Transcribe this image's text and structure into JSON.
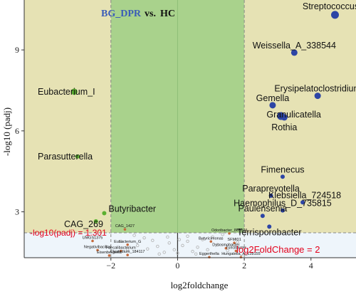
{
  "chart_data": {
    "type": "scatter",
    "title_group": "BG_DPR",
    "title_vs": "vs.",
    "title_ref": "HC",
    "xlabel": "log2foldchange",
    "ylabel": "-log10 (padj)",
    "xlim": [
      -4.6,
      5.35
    ],
    "ylim": [
      1.3,
      10.85
    ],
    "xticks": [
      -2,
      0,
      2,
      4
    ],
    "yticks": [
      3,
      6,
      9
    ],
    "fold_change_threshold": 2,
    "padj_threshold_label": "-log10(padj) = 1.301",
    "fc_threshold_label": "log2FoldChange = 2",
    "colors": {
      "up": "#2d45a5",
      "down": "#5cb031",
      "ns": "#b0b0b0",
      "yellow_region": "#e6e2b4",
      "green_region": "#a9d28c",
      "threshold_line": "#e3001b",
      "lower_region": "#eef5fb"
    },
    "points": [
      {
        "label": "Streptococcus",
        "x": 4.72,
        "y": 10.3,
        "group": "up",
        "size": "l",
        "font": "l"
      },
      {
        "label": "Weissella_A_338544",
        "x": 3.5,
        "y": 8.9,
        "group": "up",
        "size": "m",
        "font": "l"
      },
      {
        "label": "Erysipelatoclostridium",
        "x": 4.2,
        "y": 7.3,
        "group": "up",
        "size": "m",
        "font": "l"
      },
      {
        "label": "Gemella",
        "x": 2.85,
        "y": 6.95,
        "group": "up",
        "size": "m",
        "font": "l"
      },
      {
        "label": "Granulicatella",
        "x": 3.1,
        "y": 6.55,
        "group": "up",
        "size": "l",
        "font": "l"
      },
      {
        "label": "Rothia",
        "x": 3.2,
        "y": 6.5,
        "group": "up",
        "size": "m",
        "font": "l"
      },
      {
        "label": "Fimenecus",
        "x": 3.15,
        "y": 4.3,
        "group": "up",
        "size": "s",
        "font": "l"
      },
      {
        "label": "Paraprevotella",
        "x": 2.8,
        "y": 3.6,
        "group": "up",
        "size": "s",
        "font": "l"
      },
      {
        "label": "Klebsiella_724518",
        "x": 3.75,
        "y": 3.35,
        "group": "up",
        "size": "s",
        "font": "l"
      },
      {
        "label": "Haemophilus_D_735815",
        "x": 3.15,
        "y": 3.05,
        "group": "up",
        "size": "s",
        "font": "l"
      },
      {
        "label": "Paulensenia",
        "x": 2.55,
        "y": 2.85,
        "group": "up",
        "size": "s",
        "font": "l"
      },
      {
        "label": "Terrisporobacter",
        "x": 2.75,
        "y": 2.45,
        "group": "up",
        "size": "s",
        "font": "l"
      },
      {
        "label": "Eubacterium_I",
        "x": -3.1,
        "y": 7.45,
        "group": "down",
        "size": "m",
        "font": "l"
      },
      {
        "label": "Parasutterella",
        "x": -3.0,
        "y": 5.05,
        "group": "down",
        "size": "s",
        "font": "l"
      },
      {
        "label": "Butyribacter",
        "x": -2.2,
        "y": 2.95,
        "group": "down",
        "size": "s",
        "font": "l"
      },
      {
        "label": "CAG_269",
        "x": -2.45,
        "y": 2.65,
        "group": "down",
        "size": "s",
        "font": "l"
      },
      {
        "label": "CAG_1427",
        "x": -1.58,
        "y": 2.35,
        "group": "ns",
        "size": "xs",
        "font": "xs"
      },
      {
        "label": "UMGS1375",
        "x": -2.55,
        "y": 1.92,
        "group": "ns",
        "size": "xs",
        "font": "xs"
      },
      {
        "label": "Eubacterium_G",
        "x": -1.5,
        "y": 1.78,
        "group": "ns",
        "size": "xs",
        "font": "xs"
      },
      {
        "label": "Negativibacillus",
        "x": -2.4,
        "y": 1.58,
        "group": "ns",
        "size": "xs",
        "font": "xs"
      },
      {
        "label": "Faecalibacterium",
        "x": -1.7,
        "y": 1.55,
        "group": "ns",
        "size": "xs",
        "font": "xs"
      },
      {
        "label": "Eisenbergiella",
        "x": -2.05,
        "y": 1.38,
        "group": "ns",
        "size": "xs",
        "font": "xs"
      },
      {
        "label": "Clostridium_184117",
        "x": -1.5,
        "y": 1.4,
        "group": "ns",
        "size": "xs",
        "font": "xs"
      },
      {
        "label": "Odoribacter_865974",
        "x": 1.55,
        "y": 2.2,
        "group": "ns",
        "size": "xs",
        "font": "xs"
      },
      {
        "label": "Butyricimonas",
        "x": 1.0,
        "y": 1.9,
        "group": "ns",
        "size": "xs",
        "font": "xs"
      },
      {
        "label": "SFMI01",
        "x": 1.7,
        "y": 1.85,
        "group": "ns",
        "size": "xs",
        "font": "xs"
      },
      {
        "label": "Dysosmobacter",
        "x": 1.45,
        "y": 1.65,
        "group": "ns",
        "size": "xs",
        "font": "xs"
      },
      {
        "label": "Turicibacter",
        "x": 1.75,
        "y": 1.55,
        "group": "ns",
        "size": "xs",
        "font": "xs"
      },
      {
        "label": "Eggerthella",
        "x": 0.95,
        "y": 1.32,
        "group": "ns",
        "size": "xs",
        "font": "xs"
      },
      {
        "label": "Hungatella_A_128155",
        "x": 1.9,
        "y": 1.32,
        "group": "ns",
        "size": "xs",
        "font": "xs"
      }
    ],
    "background_points": [
      [
        -0.25,
        0.7
      ],
      [
        0.3,
        0.8
      ],
      [
        -0.6,
        0.5
      ],
      [
        0.6,
        0.45
      ],
      [
        -0.1,
        0.3
      ],
      [
        0.15,
        0.55
      ],
      [
        -0.9,
        0.35
      ],
      [
        0.9,
        0.3
      ],
      [
        -0.4,
        0.15
      ],
      [
        0.45,
        0.2
      ],
      [
        1.2,
        0.6
      ],
      [
        -1.2,
        0.55
      ],
      [
        0.05,
        0.9
      ],
      [
        -0.75,
        0.85
      ],
      [
        0.75,
        0.9
      ],
      [
        -1.5,
        0.3
      ],
      [
        1.5,
        0.25
      ],
      [
        -0.3,
        1.05
      ],
      [
        0.3,
        1.1
      ],
      [
        -1.0,
        1.0
      ],
      [
        1.05,
        1.05
      ],
      [
        0.0,
        0.1
      ],
      [
        -0.55,
        0.05
      ],
      [
        0.55,
        0.05
      ],
      [
        -1.7,
        0.8
      ],
      [
        1.8,
        0.75
      ],
      [
        -1.3,
        1.15
      ],
      [
        1.35,
        1.2
      ]
    ]
  }
}
